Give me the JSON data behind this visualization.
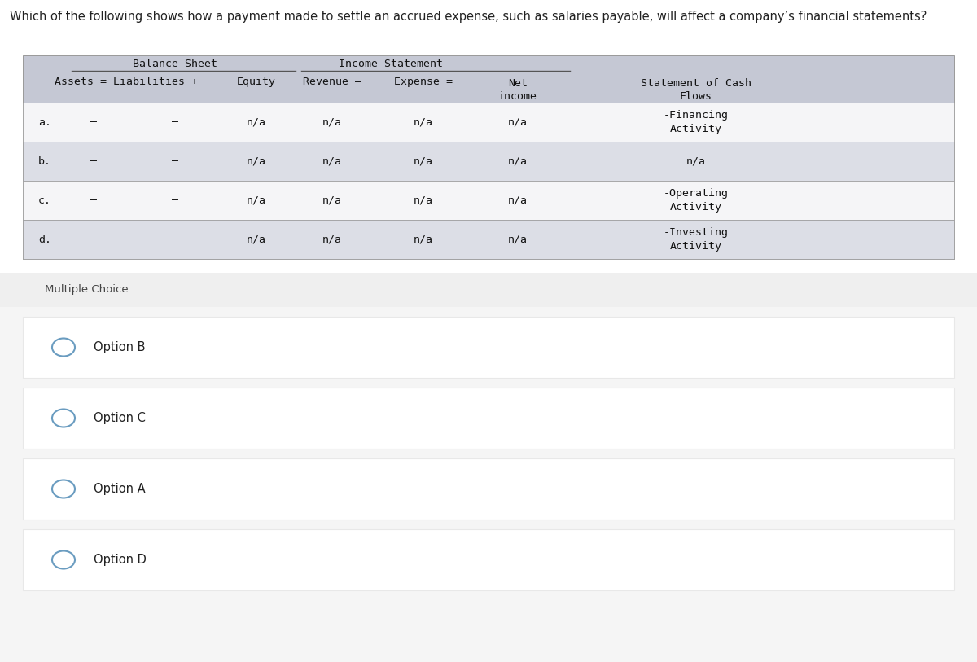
{
  "question": "Which of the following shows how a payment made to settle an accrued expense, such as salaries payable, will affect a company’s financial statements?",
  "question_fontsize": 10.5,
  "table_header_bg": "#c5c8d4",
  "row_bg_white": "#f5f5f7",
  "row_bg_gray": "#dcdee6",
  "header_fontsize": 9.5,
  "cell_fontsize": 9.5,
  "row_labels": [
    "a.",
    "b.",
    "c.",
    "d."
  ],
  "balance_sheet_header": "Balance Sheet",
  "income_statement_header": "Income Statement",
  "net_income_header": "Net\nincome",
  "cash_flows_header": "Statement of Cash\nFlows",
  "assets_label": "Assets = Liabilities +",
  "equity_label": "Equity",
  "revenue_label": "Revenue –",
  "expense_label": "Expense =",
  "na_value": "n/a",
  "dash_value": "–",
  "cash_flow_values": [
    "-Financing\nActivity",
    "n/a",
    "-Operating\nActivity",
    "-Investing\nActivity"
  ],
  "multiple_choice_label": "Multiple Choice",
  "options": [
    "Option B",
    "Option C",
    "Option A",
    "Option D"
  ],
  "mc_bg": "#efefef",
  "mc_section_bg": "#f5f5f5",
  "option_bg": "#ffffff",
  "option_border": "#e8e8e8",
  "circle_color": "#6a9cc0",
  "option_fontsize": 10.5,
  "mc_fontsize": 9.5,
  "page_bg": "#ffffff",
  "text_color": "#222222",
  "table_text_color": "#111111",
  "table_border": "#999999"
}
